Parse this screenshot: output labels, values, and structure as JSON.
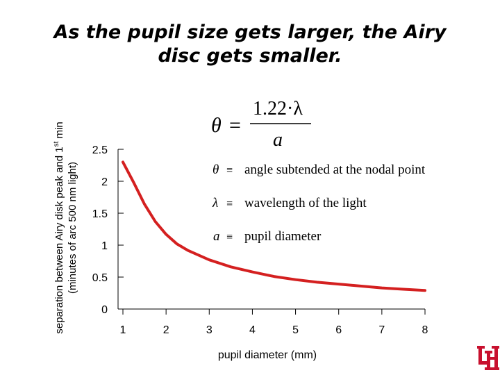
{
  "title_lines": [
    "As the pupil size gets larger, the Airy",
    "disc gets smaller."
  ],
  "ylabel_lines": [
    "separation between Airy disk peak and 1",
    "st",
    " min",
    "(minutes of arc 500 nm light)"
  ],
  "xlabel": "pupil diameter (mm)",
  "formula": {
    "lhs": "θ",
    "eq": "=",
    "numerator": "1.22·λ",
    "denominator": "a"
  },
  "definitions": [
    {
      "symbol": "θ",
      "equiv": "≡",
      "text": "angle subtended at the nodal point"
    },
    {
      "symbol": "λ",
      "equiv": "≡",
      "text": "wavelength of the light"
    },
    {
      "symbol": "a",
      "equiv": "≡",
      "text": "pupil diameter"
    }
  ],
  "colors": {
    "curve": "#d42020",
    "axis": "#000000",
    "logo": "#c8102e"
  },
  "logo_icon": "university-of-houston-uh-logo",
  "chart_data": {
    "type": "line",
    "title": "As the pupil size gets larger, the Airy disc gets smaller.",
    "xlabel": "pupil diameter (mm)",
    "ylabel": "separation between Airy disk peak and 1st min (minutes of arc 500 nm light)",
    "xlim": [
      1,
      8
    ],
    "ylim": [
      0,
      2.5
    ],
    "x_ticks": [
      "1",
      "2",
      "3",
      "4",
      "5",
      "6",
      "7",
      "8"
    ],
    "y_ticks": [
      "0",
      "0.5",
      "1",
      "1.5",
      "2",
      "2.5"
    ],
    "grid": false,
    "series": [
      {
        "x": [
          1,
          1.25,
          1.5,
          1.75,
          2,
          2.25,
          2.5,
          3,
          3.5,
          4,
          4.5,
          5,
          5.5,
          6,
          6.5,
          7,
          7.5,
          8
        ],
        "values": [
          2.3,
          1.98,
          1.64,
          1.37,
          1.17,
          1.02,
          0.92,
          0.77,
          0.66,
          0.58,
          0.51,
          0.46,
          0.42,
          0.39,
          0.36,
          0.33,
          0.31,
          0.29
        ]
      }
    ]
  }
}
